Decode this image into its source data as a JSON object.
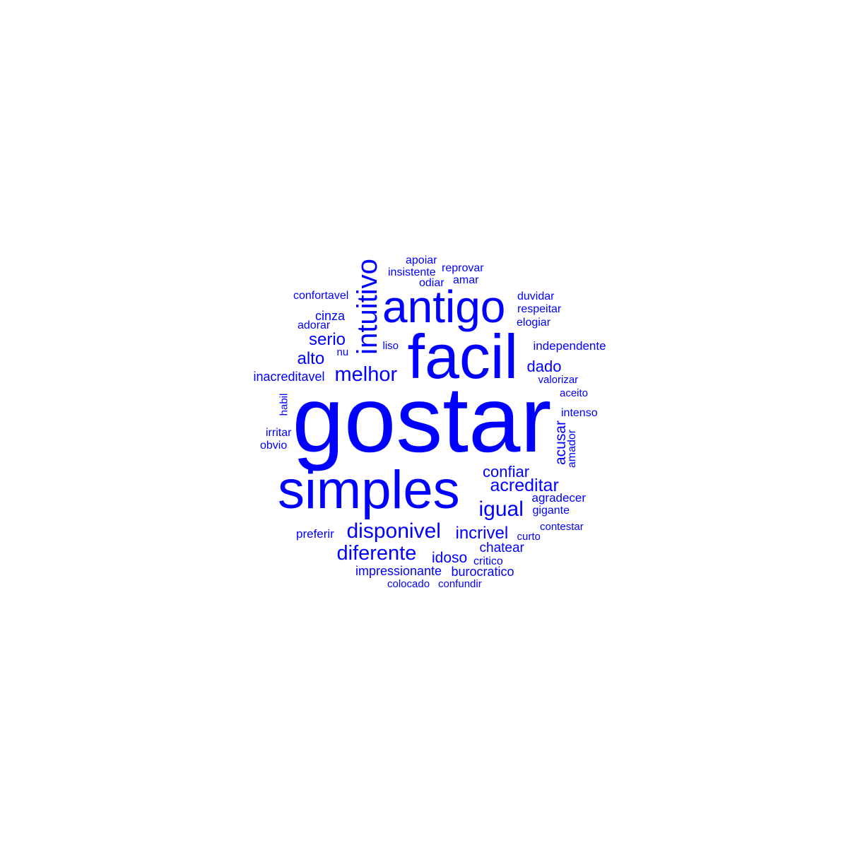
{
  "color": "#0000ff",
  "words": [
    {
      "id": "gostar",
      "text": "gostar",
      "rotated": false
    },
    {
      "id": "facil",
      "text": "facil",
      "rotated": false
    },
    {
      "id": "simples",
      "text": "simples",
      "rotated": false
    },
    {
      "id": "antigo",
      "text": "antigo",
      "rotated": false
    },
    {
      "id": "intuitivo",
      "text": "intuitivo",
      "rotated": true
    },
    {
      "id": "melhor",
      "text": "melhor",
      "rotated": false
    },
    {
      "id": "disponivel",
      "text": "disponivel",
      "rotated": false
    },
    {
      "id": "diferente",
      "text": "diferente",
      "rotated": false
    },
    {
      "id": "igual",
      "text": "igual",
      "rotated": false
    },
    {
      "id": "acreditar",
      "text": "acreditar",
      "rotated": false
    },
    {
      "id": "confiar",
      "text": "confiar",
      "rotated": false
    },
    {
      "id": "incrivel",
      "text": "incrivel",
      "rotated": false
    },
    {
      "id": "serio",
      "text": "serio",
      "rotated": false
    },
    {
      "id": "alto",
      "text": "alto",
      "rotated": false
    },
    {
      "id": "dado",
      "text": "dado",
      "rotated": false
    },
    {
      "id": "idoso",
      "text": "idoso",
      "rotated": false
    },
    {
      "id": "acusar",
      "text": "acusar",
      "rotated": true
    },
    {
      "id": "chatear",
      "text": "chatear",
      "rotated": false
    },
    {
      "id": "cinza",
      "text": "cinza",
      "rotated": false
    },
    {
      "id": "inacreditavel",
      "text": "inacreditavel",
      "rotated": false
    },
    {
      "id": "independente",
      "text": "independente",
      "rotated": false
    },
    {
      "id": "impressionante",
      "text": "impressionante",
      "rotated": false
    },
    {
      "id": "burocratico",
      "text": "burocratico",
      "rotated": false
    },
    {
      "id": "preferir",
      "text": "preferir",
      "rotated": false
    },
    {
      "id": "agradecer",
      "text": "agradecer",
      "rotated": false
    },
    {
      "id": "gigante",
      "text": "gigante",
      "rotated": false
    },
    {
      "id": "respeitar",
      "text": "respeitar",
      "rotated": false
    },
    {
      "id": "elogiar",
      "text": "elogiar",
      "rotated": false
    },
    {
      "id": "duvidar",
      "text": "duvidar",
      "rotated": false
    },
    {
      "id": "confortavel",
      "text": "confortavel",
      "rotated": false
    },
    {
      "id": "adorar",
      "text": "adorar",
      "rotated": false
    },
    {
      "id": "insistente",
      "text": "insistente",
      "rotated": false
    },
    {
      "id": "apoiar",
      "text": "apoiar",
      "rotated": false
    },
    {
      "id": "reprovar",
      "text": "reprovar",
      "rotated": false
    },
    {
      "id": "odiar",
      "text": "odiar",
      "rotated": false
    },
    {
      "id": "amar",
      "text": "amar",
      "rotated": false
    },
    {
      "id": "valorizar",
      "text": "valorizar",
      "rotated": false
    },
    {
      "id": "aceito",
      "text": "aceito",
      "rotated": false
    },
    {
      "id": "intenso",
      "text": "intenso",
      "rotated": false
    },
    {
      "id": "amador",
      "text": "amador",
      "rotated": true
    },
    {
      "id": "irritar",
      "text": "irritar",
      "rotated": false
    },
    {
      "id": "obvio",
      "text": "obvio",
      "rotated": false
    },
    {
      "id": "habil",
      "text": "habil",
      "rotated": true
    },
    {
      "id": "curto",
      "text": "curto",
      "rotated": false
    },
    {
      "id": "contestar",
      "text": "contestar",
      "rotated": false
    },
    {
      "id": "critico",
      "text": "critico",
      "rotated": false
    },
    {
      "id": "colocado",
      "text": "colocado",
      "rotated": false
    },
    {
      "id": "confundir",
      "text": "confundir",
      "rotated": false
    },
    {
      "id": "liso",
      "text": "liso",
      "rotated": false
    },
    {
      "id": "nu",
      "text": "nu",
      "rotated": false
    }
  ]
}
